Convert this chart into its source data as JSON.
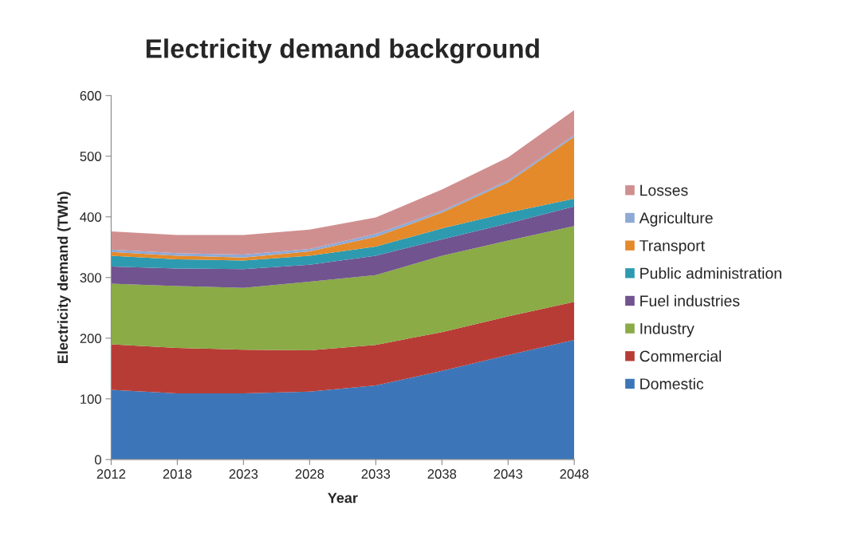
{
  "chart_data": {
    "type": "area",
    "stacked": true,
    "title": "Electricity demand background",
    "xlabel": "Year",
    "ylabel": "Electricity demand (TWh)",
    "categories": [
      "2012",
      "2018",
      "2023",
      "2028",
      "2033",
      "2038",
      "2043",
      "2048"
    ],
    "ylim": [
      0,
      600
    ],
    "yticks": [
      0,
      100,
      200,
      300,
      400,
      500,
      600
    ],
    "grid": false,
    "legend": "right",
    "series": [
      {
        "name": "Domestic",
        "color": "#3d76b8",
        "values": [
          115,
          109,
          109,
          112,
          122,
          146,
          172,
          197
        ]
      },
      {
        "name": "Commercial",
        "color": "#b83c36",
        "values": [
          75,
          75,
          72,
          68,
          67,
          64,
          64,
          63
        ]
      },
      {
        "name": "Industry",
        "color": "#8aab45",
        "values": [
          100,
          102,
          102,
          113,
          115,
          126,
          125,
          125
        ]
      },
      {
        "name": "Fuel industries",
        "color": "#71538f",
        "values": [
          28,
          29,
          31,
          28,
          32,
          27,
          28,
          32
        ]
      },
      {
        "name": "Public administration",
        "color": "#2e9ab0",
        "values": [
          18,
          15,
          14,
          15,
          15,
          18,
          18,
          13
        ]
      },
      {
        "name": "Transport",
        "color": "#e48a2a",
        "values": [
          6,
          6,
          5,
          7,
          16,
          26,
          50,
          102
        ]
      },
      {
        "name": "Agriculture",
        "color": "#8fa9d5",
        "values": [
          4,
          4,
          5,
          4,
          5,
          3,
          3,
          3
        ]
      },
      {
        "name": "Losses",
        "color": "#d08f8f",
        "values": [
          30,
          30,
          32,
          32,
          27,
          35,
          38,
          41
        ]
      }
    ]
  }
}
